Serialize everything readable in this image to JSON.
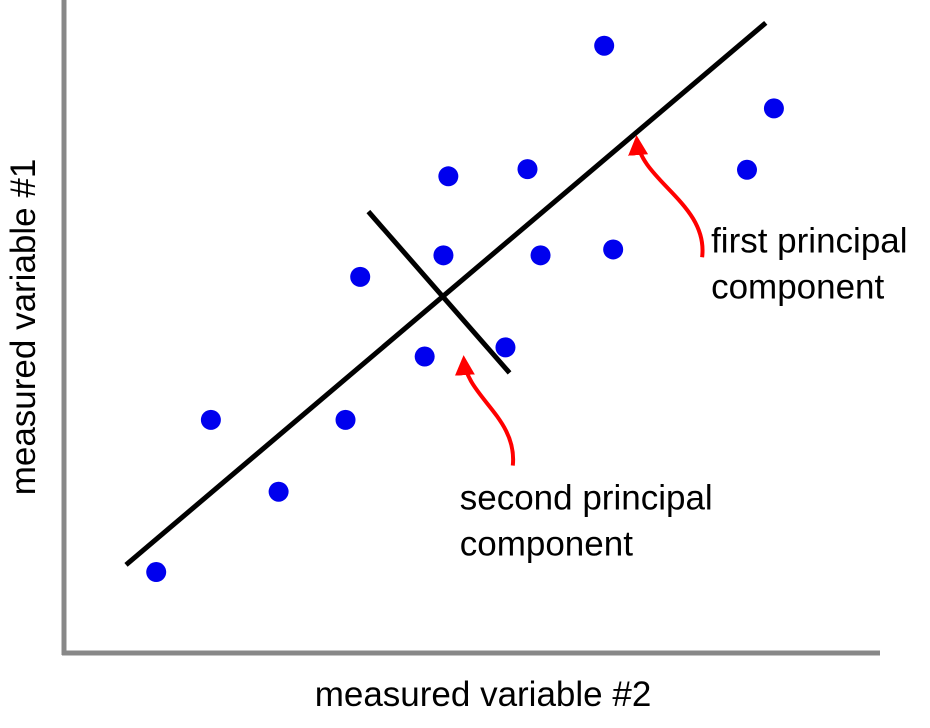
{
  "chart_data": {
    "type": "scatter",
    "title": "",
    "xlabel": "measured variable #2",
    "ylabel": "measured variable #1",
    "xlim": [
      0,
      100
    ],
    "ylim": [
      0,
      100
    ],
    "grid": false,
    "legend": "none",
    "axis_color": "#888888",
    "point_color": "#0000ee",
    "line_color": "#000000",
    "arrow_color": "#ff0000",
    "series": [
      {
        "points": [
          {
            "x": 11.3,
            "y": 12.4
          },
          {
            "x": 18.0,
            "y": 35.7
          },
          {
            "x": 26.3,
            "y": 24.7
          },
          {
            "x": 34.5,
            "y": 35.7
          },
          {
            "x": 36.3,
            "y": 57.6
          },
          {
            "x": 44.2,
            "y": 45.4
          },
          {
            "x": 46.5,
            "y": 60.9
          },
          {
            "x": 47.1,
            "y": 73.0
          },
          {
            "x": 54.1,
            "y": 46.8
          },
          {
            "x": 56.8,
            "y": 74.1
          },
          {
            "x": 58.4,
            "y": 60.9
          },
          {
            "x": 67.3,
            "y": 61.8
          },
          {
            "x": 66.2,
            "y": 93.0
          },
          {
            "x": 83.7,
            "y": 74.0
          },
          {
            "x": 87.0,
            "y": 83.4
          }
        ]
      }
    ],
    "lines": [
      {
        "label": "first principal component",
        "from": {
          "x": 7.6,
          "y": 13.5
        },
        "to": {
          "x": 86.0,
          "y": 96.5
        }
      },
      {
        "label": "second principal component",
        "from": {
          "x": 37.3,
          "y": 67.6
        },
        "to": {
          "x": 54.6,
          "y": 42.9
        }
      }
    ],
    "annotations": [
      {
        "line1": "first principal",
        "line2": "component",
        "arrow_from": {
          "x": 78.2,
          "y": 60.6
        },
        "arrow_to": {
          "x": 70.2,
          "y": 78.7
        },
        "text_at": {
          "x": 79.3,
          "y": 61.3
        }
      },
      {
        "line1": "second principal",
        "line2": "component",
        "arrow_from": {
          "x": 55.0,
          "y": 28.7
        },
        "arrow_to": {
          "x": 49.0,
          "y": 45.0
        },
        "text_at": {
          "x": 48.5,
          "y": 22.0
        }
      }
    ]
  }
}
